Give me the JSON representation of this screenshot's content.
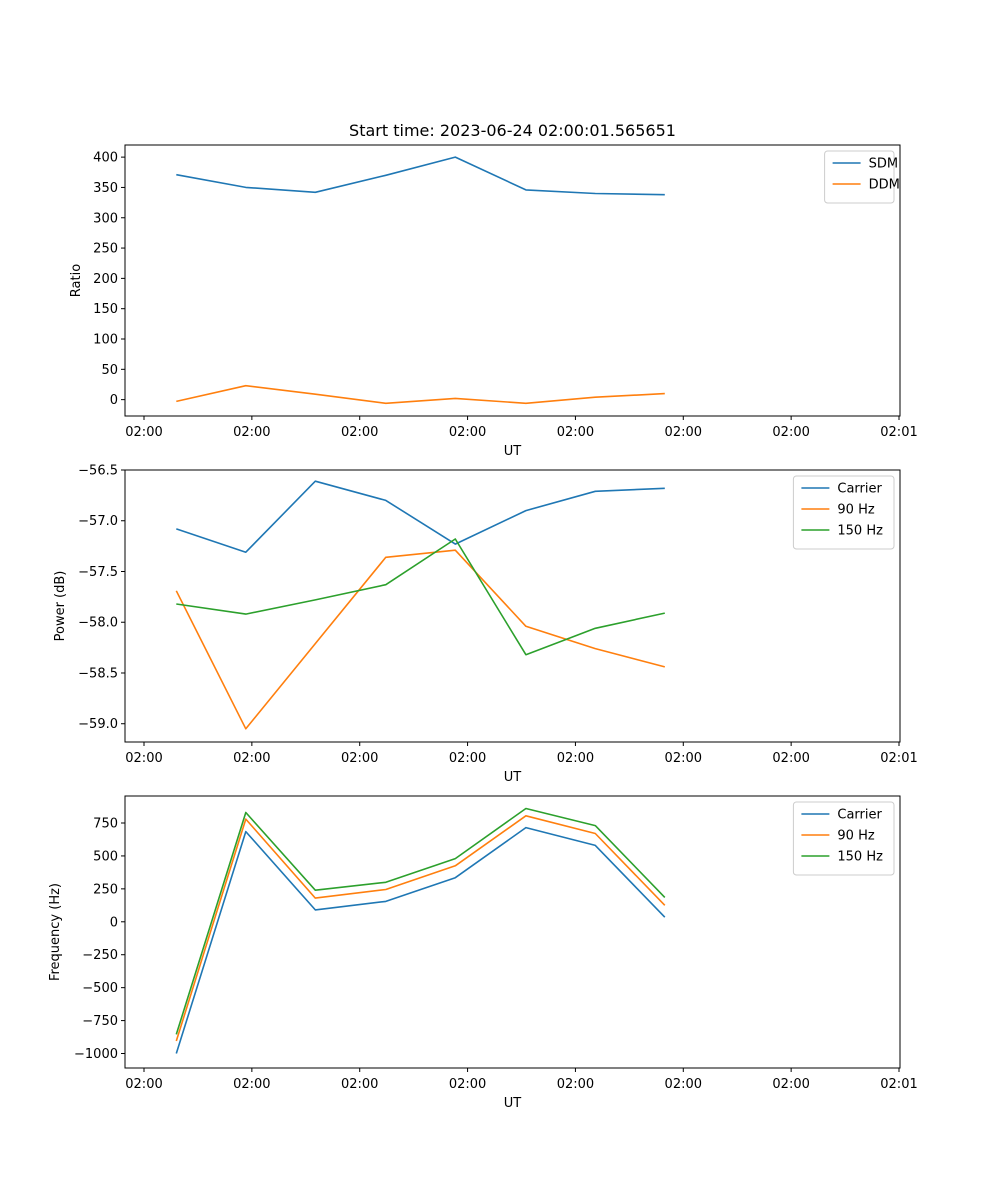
{
  "figure": {
    "title": "Start time: 2023-06-24 02:00:01.565651"
  },
  "chart_data": [
    {
      "type": "line",
      "title": "Start time: 2023-06-24 02:00:01.565651",
      "xlabel": "UT",
      "ylabel": "Ratio",
      "x_tick_labels": [
        "02:00",
        "02:00",
        "02:00",
        "02:00",
        "02:00",
        "02:00",
        "02:00",
        "02:01"
      ],
      "y_ticks": [
        0,
        50,
        100,
        150,
        200,
        250,
        300,
        350,
        400
      ],
      "y_tick_labels": [
        "0",
        "50",
        "100",
        "150",
        "200",
        "250",
        "300",
        "350",
        "400"
      ],
      "xlim": [
        0,
        7.25
      ],
      "ylim": [
        -27,
        420
      ],
      "x": [
        0.48,
        1.13,
        1.78,
        2.44,
        3.09,
        3.75,
        4.4,
        5.05
      ],
      "grid": false,
      "legend_position": "upper right",
      "series": [
        {
          "name": "SDM",
          "color": "#1f77b4",
          "values": [
            371,
            350,
            342,
            370,
            400,
            346,
            340,
            338
          ]
        },
        {
          "name": "DDM",
          "color": "#ff7f0e",
          "values": [
            -3,
            23,
            9,
            -6,
            2,
            -6,
            4,
            10
          ]
        }
      ]
    },
    {
      "type": "line",
      "xlabel": "UT",
      "ylabel": "Power (dB)",
      "x_tick_labels": [
        "02:00",
        "02:00",
        "02:00",
        "02:00",
        "02:00",
        "02:00",
        "02:00",
        "02:01"
      ],
      "y_ticks": [
        -59.0,
        -58.5,
        -58.0,
        -57.5,
        -57.0,
        -56.5
      ],
      "y_tick_labels": [
        "−59.0",
        "−58.5",
        "−58.0",
        "−57.5",
        "−57.0",
        "−56.5"
      ],
      "xlim": [
        0,
        7.25
      ],
      "ylim": [
        -59.18,
        -56.5
      ],
      "x": [
        0.48,
        1.13,
        1.78,
        2.44,
        3.09,
        3.75,
        4.4,
        5.05
      ],
      "grid": false,
      "legend_position": "upper right",
      "series": [
        {
          "name": "Carrier",
          "color": "#1f77b4",
          "values": [
            -57.08,
            -57.31,
            -56.61,
            -56.8,
            -57.23,
            -56.9,
            -56.71,
            -56.68
          ]
        },
        {
          "name": "90 Hz",
          "color": "#ff7f0e",
          "values": [
            -57.69,
            -59.05,
            -58.21,
            -57.36,
            -57.29,
            -58.04,
            -58.26,
            -58.44
          ]
        },
        {
          "name": "150 Hz",
          "color": "#2ca02c",
          "values": [
            -57.82,
            -57.92,
            -57.78,
            -57.63,
            -57.18,
            -58.32,
            -58.06,
            -57.91
          ]
        }
      ]
    },
    {
      "type": "line",
      "xlabel": "UT",
      "ylabel": "Frequency (Hz)",
      "x_tick_labels": [
        "02:00",
        "02:00",
        "02:00",
        "02:00",
        "02:00",
        "02:00",
        "02:00",
        "02:01"
      ],
      "y_ticks": [
        -1000,
        -750,
        -500,
        -250,
        0,
        250,
        500,
        750
      ],
      "y_tick_labels": [
        "−1000",
        "−750",
        "−500",
        "−250",
        "0",
        "250",
        "500",
        "750"
      ],
      "xlim": [
        0,
        7.25
      ],
      "ylim": [
        -1110,
        955
      ],
      "x": [
        0.48,
        1.13,
        1.78,
        2.44,
        3.09,
        3.75,
        4.4,
        5.05
      ],
      "grid": false,
      "legend_position": "upper right",
      "series": [
        {
          "name": "Carrier",
          "color": "#1f77b4",
          "values": [
            -1000,
            685,
            90,
            155,
            335,
            715,
            580,
            35
          ]
        },
        {
          "name": "90 Hz",
          "color": "#ff7f0e",
          "values": [
            -905,
            780,
            180,
            245,
            425,
            805,
            670,
            125
          ]
        },
        {
          "name": "150 Hz",
          "color": "#2ca02c",
          "values": [
            -855,
            830,
            240,
            300,
            480,
            860,
            730,
            185
          ]
        }
      ]
    }
  ]
}
